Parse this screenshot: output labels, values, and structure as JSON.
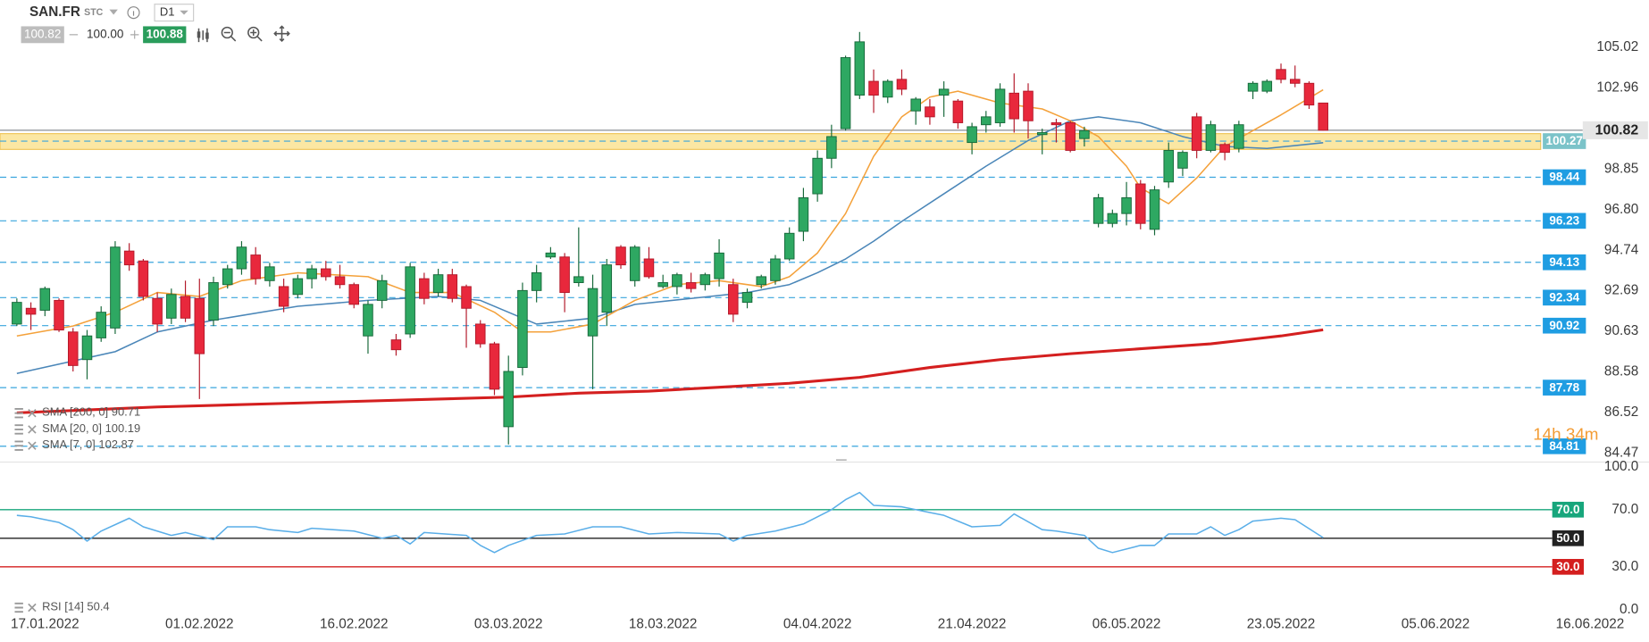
{
  "toolbar": {
    "symbol": "SAN.FR",
    "market": "STC",
    "timeframe": "D1",
    "bid": "100.82",
    "volume": "100.00",
    "ask": "100.88"
  },
  "chart_data": [
    {
      "type": "candlestick",
      "x": [
        0,
        1,
        2,
        3,
        4,
        5,
        6,
        7,
        8,
        9,
        10,
        11,
        12,
        13,
        14,
        15,
        16,
        17,
        18,
        19,
        20,
        21,
        22,
        23,
        24,
        25,
        26,
        27,
        28,
        29,
        30,
        31,
        32,
        33,
        34,
        35,
        36,
        37,
        38,
        39,
        40,
        41,
        42,
        43,
        44,
        45,
        46,
        47,
        48,
        49,
        50,
        51,
        52,
        53,
        54,
        55,
        56,
        57,
        58,
        59,
        60,
        61,
        62,
        63,
        64,
        65,
        66,
        67,
        68,
        69,
        70,
        71,
        72,
        73,
        74,
        75,
        76,
        77,
        78,
        79,
        80,
        81,
        82,
        83,
        84,
        85,
        86,
        87,
        88,
        89,
        90,
        91,
        92,
        93
      ],
      "open": [
        91.0,
        91.8,
        91.7,
        92.2,
        90.6,
        89.2,
        90.3,
        90.8,
        94.7,
        94.2,
        92.3,
        91.3,
        92.4,
        92.3,
        91.2,
        93.0,
        93.8,
        94.5,
        93.2,
        92.9,
        92.5,
        93.3,
        93.8,
        93.4,
        93.0,
        90.4,
        92.2,
        90.2,
        90.5,
        93.3,
        92.6,
        93.5,
        92.9,
        91.0,
        90.0,
        85.8,
        88.8,
        92.7,
        94.4,
        94.4,
        93.1,
        90.4,
        91.6,
        94.9,
        93.2,
        94.3,
        92.9,
        92.9,
        93.1,
        93.0,
        93.3,
        93.0,
        92.1,
        93.0,
        93.2,
        94.3,
        95.7,
        97.6,
        99.4,
        100.9,
        102.6,
        103.3,
        102.5,
        103.4,
        101.8,
        102.0,
        102.6,
        102.3,
        100.2,
        101.1,
        101.2,
        102.7,
        102.8,
        100.6,
        101.2,
        101.2,
        100.4,
        96.1,
        96.1,
        96.6,
        98.1,
        95.8,
        98.2,
        98.9,
        101.5,
        99.8,
        100.1,
        99.9,
        102.8,
        102.8,
        103.9,
        103.4,
        103.2,
        102.2
      ],
      "high": [
        92.3,
        92.1,
        92.9,
        92.3,
        90.8,
        90.7,
        91.9,
        95.2,
        95.1,
        94.3,
        92.6,
        92.8,
        93.2,
        93.3,
        93.4,
        94.0,
        95.2,
        94.9,
        94.1,
        93.3,
        93.5,
        94.0,
        94.2,
        94.0,
        93.1,
        92.2,
        93.5,
        90.5,
        94.1,
        93.6,
        93.8,
        93.8,
        93.0,
        91.2,
        90.1,
        89.4,
        93.1,
        94.0,
        94.9,
        94.6,
        95.9,
        93.5,
        94.3,
        95.0,
        95.0,
        94.9,
        93.5,
        93.6,
        93.6,
        93.6,
        95.3,
        93.3,
        92.8,
        93.5,
        94.5,
        95.9,
        97.9,
        99.8,
        101.1,
        104.6,
        105.8,
        103.9,
        103.4,
        103.9,
        102.5,
        102.4,
        103.3,
        102.4,
        101.2,
        101.8,
        103.2,
        103.7,
        103.2,
        100.9,
        101.4,
        101.3,
        101.0,
        97.6,
        96.8,
        98.2,
        98.3,
        98.0,
        100.2,
        99.8,
        101.7,
        101.3,
        100.2,
        101.3,
        103.3,
        103.4,
        104.2,
        104.1,
        103.3,
        102.2
      ],
      "low": [
        90.9,
        90.7,
        91.4,
        90.6,
        88.6,
        88.2,
        90.1,
        90.5,
        93.7,
        92.2,
        90.6,
        91.0,
        91.1,
        87.2,
        90.9,
        92.8,
        93.5,
        93.0,
        92.9,
        91.6,
        92.3,
        92.8,
        93.2,
        92.8,
        91.8,
        89.5,
        91.8,
        89.4,
        90.3,
        92.0,
        92.4,
        92.1,
        89.8,
        89.8,
        87.4,
        84.9,
        88.4,
        92.1,
        94.3,
        91.6,
        92.9,
        87.7,
        90.9,
        93.8,
        92.9,
        93.3,
        92.8,
        92.5,
        92.6,
        92.7,
        92.9,
        91.1,
        91.8,
        92.8,
        93.0,
        94.2,
        95.2,
        97.2,
        98.9,
        100.8,
        102.4,
        101.7,
        102.2,
        102.6,
        101.1,
        101.1,
        101.5,
        100.9,
        99.6,
        100.7,
        101.0,
        100.7,
        100.4,
        99.6,
        100.2,
        99.7,
        100.0,
        95.9,
        95.9,
        96.0,
        95.8,
        95.5,
        97.9,
        98.5,
        99.4,
        99.7,
        99.3,
        99.7,
        102.4,
        102.7,
        103.2,
        103.0,
        101.9,
        100.8
      ],
      "close": [
        92.1,
        91.5,
        92.8,
        90.7,
        88.9,
        90.4,
        91.6,
        94.9,
        94.0,
        92.4,
        91.0,
        92.5,
        91.3,
        89.5,
        93.1,
        93.8,
        94.9,
        93.3,
        93.9,
        91.9,
        93.3,
        93.8,
        93.4,
        93.0,
        92.0,
        92.0,
        93.2,
        89.7,
        93.9,
        92.3,
        93.5,
        92.3,
        91.8,
        90.0,
        87.7,
        88.6,
        92.7,
        93.6,
        94.6,
        92.6,
        93.4,
        92.8,
        94.0,
        94.0,
        94.9,
        93.4,
        93.1,
        93.5,
        92.8,
        93.5,
        94.6,
        91.5,
        92.6,
        93.4,
        94.3,
        95.6,
        97.4,
        99.4,
        100.5,
        104.5,
        105.3,
        102.6,
        103.3,
        102.9,
        102.4,
        101.5,
        102.9,
        101.2,
        101.0,
        101.5,
        102.9,
        101.4,
        101.3,
        100.7,
        101.1,
        99.8,
        100.8,
        97.4,
        96.6,
        97.4,
        96.1,
        97.8,
        99.8,
        99.7,
        99.8,
        101.1,
        99.7,
        101.1,
        103.2,
        103.3,
        103.4,
        103.2,
        102.1,
        100.82
      ],
      "up_color": "#2ea862",
      "up_edge": "#17683a",
      "down_color": "#e8283c",
      "down_edge": "#b3192a",
      "xlim": [
        -1.2,
        116.2
      ],
      "xticks": [
        {
          "value": 2,
          "label": "17.01.2022"
        },
        {
          "value": 13,
          "label": "01.02.2022"
        },
        {
          "value": 24,
          "label": "16.02.2022"
        },
        {
          "value": 35,
          "label": "03.03.2022"
        },
        {
          "value": 46,
          "label": "18.03.2022"
        },
        {
          "value": 57,
          "label": "04.04.2022"
        },
        {
          "value": 68,
          "label": "21.04.2022"
        },
        {
          "value": 79,
          "label": "06.05.2022"
        },
        {
          "value": 90,
          "label": "23.05.2022"
        },
        {
          "value": 101,
          "label": "05.06.2022"
        },
        {
          "value": 112,
          "label": "16.06.2022"
        }
      ],
      "ylim": [
        84.09,
        107.42
      ],
      "yticks": [
        105.02,
        102.96,
        98.85,
        {
          "value": 96.8,
          "label": "96.80"
        },
        94.74,
        92.69,
        90.63,
        88.58,
        86.52,
        84.47
      ],
      "last_price": 100.82,
      "zone": [
        99.85,
        100.65
      ],
      "zone_color": "#fbe7a3",
      "zone_edge": "#efc55a",
      "level_line_color": "#39a5dd",
      "levels": [
        {
          "value": 100.27,
          "color": "#7bc3c9"
        },
        {
          "value": 98.44,
          "color": "#1f9de2"
        },
        {
          "value": 96.23,
          "color": "#1f9de2"
        },
        {
          "value": 94.13,
          "color": "#1f9de2"
        },
        {
          "value": 92.34,
          "color": "#1f9de2"
        },
        {
          "value": 90.92,
          "color": "#1f9de2"
        },
        {
          "value": 87.78,
          "color": "#1f9de2"
        },
        {
          "value": 84.81,
          "color": "#1f9de2"
        }
      ],
      "series": [
        {
          "name": "SMA [200, 0]",
          "color": "#d41f1f",
          "width": 2.6,
          "last_value": 90.71,
          "x": [
            0,
            10,
            20,
            30,
            35,
            40,
            45,
            50,
            55,
            60,
            65,
            70,
            75,
            80,
            85,
            90,
            93
          ],
          "values": [
            86.5,
            86.8,
            87.0,
            87.2,
            87.3,
            87.5,
            87.6,
            87.8,
            88.0,
            88.3,
            88.8,
            89.2,
            89.5,
            89.75,
            90.0,
            90.4,
            90.71
          ]
        },
        {
          "name": "SMA [20, 0]",
          "color": "#4a86b8",
          "width": 1.3,
          "last_value": 100.19,
          "x": [
            0,
            7,
            10,
            14,
            20,
            25,
            30,
            33,
            35,
            37,
            41,
            44,
            48,
            52,
            55,
            57,
            59,
            61,
            63,
            66,
            69,
            72,
            75,
            77,
            80,
            83,
            86,
            89,
            93
          ],
          "values": [
            88.5,
            89.6,
            90.6,
            91.2,
            91.9,
            92.2,
            92.4,
            92.2,
            91.6,
            91.0,
            91.3,
            92.0,
            92.3,
            92.6,
            93.0,
            93.6,
            94.3,
            95.2,
            96.2,
            97.6,
            99.0,
            100.3,
            101.3,
            101.5,
            101.2,
            100.5,
            100.0,
            99.9,
            100.19
          ]
        },
        {
          "name": "SMA [7, 0]",
          "color": "#f4a13a",
          "width": 1.3,
          "last_value": 102.87,
          "x": [
            0,
            4,
            7,
            10,
            13,
            16,
            20,
            25,
            28,
            31,
            34,
            36,
            38,
            41,
            44,
            47,
            50,
            53,
            55,
            57,
            59,
            61,
            63,
            65,
            67,
            70,
            73,
            75,
            77,
            79,
            80,
            82,
            84,
            86,
            88,
            90,
            93
          ],
          "values": [
            90.4,
            90.9,
            91.6,
            92.6,
            92.4,
            93.2,
            93.6,
            93.4,
            92.6,
            92.6,
            91.6,
            90.6,
            90.6,
            91.0,
            92.2,
            93.0,
            93.2,
            92.9,
            93.4,
            94.6,
            96.6,
            99.5,
            101.5,
            102.5,
            102.8,
            102.2,
            101.9,
            101.3,
            100.5,
            99.0,
            97.9,
            97.1,
            98.4,
            100.0,
            100.8,
            101.6,
            102.87
          ]
        }
      ],
      "countdown": "14h 34m",
      "countdown_color": "#f39c34"
    },
    {
      "type": "line",
      "ylim": [
        0,
        100
      ],
      "yticks": [
        {
          "value": 100,
          "label": "100.0"
        },
        {
          "value": 70,
          "label": "70.0"
        },
        {
          "value": 30,
          "label": "30.0"
        },
        {
          "value": 0,
          "label": "0.0"
        }
      ],
      "levels": [
        {
          "value": 70,
          "label": "70.0",
          "color": "#17a67c"
        },
        {
          "value": 50,
          "label": "50.0",
          "color": "#222222"
        },
        {
          "value": 30,
          "label": "30.0",
          "color": "#d41f1f"
        }
      ],
      "series": [
        {
          "name": "RSI [14]",
          "color": "#5aaee8",
          "last_value": 50.4,
          "x": [
            0,
            1,
            3,
            4,
            5,
            6,
            8,
            9,
            11,
            12,
            14,
            15,
            17,
            18,
            20,
            21,
            24,
            26,
            27,
            28,
            29,
            32,
            33,
            34,
            35,
            37,
            39,
            41,
            43,
            45,
            47,
            50,
            51,
            52,
            54,
            56,
            58,
            59,
            60,
            61,
            63,
            65,
            66,
            68,
            70,
            71,
            73,
            74,
            76,
            77,
            78,
            80,
            81,
            82,
            84,
            85,
            86,
            87,
            88,
            90,
            91,
            93
          ],
          "values": [
            66,
            65,
            61,
            56,
            48,
            55,
            64,
            58,
            52,
            54,
            49,
            58,
            58,
            56,
            54,
            57,
            55,
            50,
            52,
            46,
            54,
            52,
            45,
            40,
            45,
            52,
            53,
            58,
            58,
            53,
            54,
            53,
            48,
            52,
            55,
            60,
            70,
            77,
            82,
            73,
            72,
            68,
            66,
            58,
            59,
            67,
            56,
            55,
            52,
            43,
            40,
            45,
            45,
            53,
            53,
            58,
            52,
            56,
            62,
            64,
            63,
            50.4
          ]
        }
      ]
    }
  ]
}
